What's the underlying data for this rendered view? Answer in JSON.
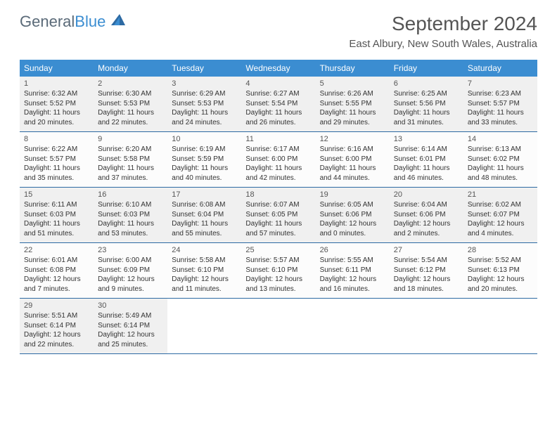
{
  "logo": {
    "text1": "General",
    "text2": "Blue"
  },
  "title": "September 2024",
  "location": "East Albury, New South Wales, Australia",
  "colors": {
    "header_bg": "#3b8dd1",
    "header_text": "#ffffff",
    "row_border": "#2d6aa3",
    "shaded_bg": "#f0f0f0",
    "cell_bg": "#fcfcfc",
    "text": "#333333",
    "logo_gray": "#5a6a78",
    "logo_blue": "#3b8dd1"
  },
  "day_names": [
    "Sunday",
    "Monday",
    "Tuesday",
    "Wednesday",
    "Thursday",
    "Friday",
    "Saturday"
  ],
  "weeks": [
    [
      {
        "n": "1",
        "sr": "Sunrise: 6:32 AM",
        "ss": "Sunset: 5:52 PM",
        "d1": "Daylight: 11 hours",
        "d2": "and 20 minutes.",
        "shaded": true
      },
      {
        "n": "2",
        "sr": "Sunrise: 6:30 AM",
        "ss": "Sunset: 5:53 PM",
        "d1": "Daylight: 11 hours",
        "d2": "and 22 minutes.",
        "shaded": true
      },
      {
        "n": "3",
        "sr": "Sunrise: 6:29 AM",
        "ss": "Sunset: 5:53 PM",
        "d1": "Daylight: 11 hours",
        "d2": "and 24 minutes.",
        "shaded": true
      },
      {
        "n": "4",
        "sr": "Sunrise: 6:27 AM",
        "ss": "Sunset: 5:54 PM",
        "d1": "Daylight: 11 hours",
        "d2": "and 26 minutes.",
        "shaded": true
      },
      {
        "n": "5",
        "sr": "Sunrise: 6:26 AM",
        "ss": "Sunset: 5:55 PM",
        "d1": "Daylight: 11 hours",
        "d2": "and 29 minutes.",
        "shaded": true
      },
      {
        "n": "6",
        "sr": "Sunrise: 6:25 AM",
        "ss": "Sunset: 5:56 PM",
        "d1": "Daylight: 11 hours",
        "d2": "and 31 minutes.",
        "shaded": true
      },
      {
        "n": "7",
        "sr": "Sunrise: 6:23 AM",
        "ss": "Sunset: 5:57 PM",
        "d1": "Daylight: 11 hours",
        "d2": "and 33 minutes.",
        "shaded": true
      }
    ],
    [
      {
        "n": "8",
        "sr": "Sunrise: 6:22 AM",
        "ss": "Sunset: 5:57 PM",
        "d1": "Daylight: 11 hours",
        "d2": "and 35 minutes."
      },
      {
        "n": "9",
        "sr": "Sunrise: 6:20 AM",
        "ss": "Sunset: 5:58 PM",
        "d1": "Daylight: 11 hours",
        "d2": "and 37 minutes."
      },
      {
        "n": "10",
        "sr": "Sunrise: 6:19 AM",
        "ss": "Sunset: 5:59 PM",
        "d1": "Daylight: 11 hours",
        "d2": "and 40 minutes."
      },
      {
        "n": "11",
        "sr": "Sunrise: 6:17 AM",
        "ss": "Sunset: 6:00 PM",
        "d1": "Daylight: 11 hours",
        "d2": "and 42 minutes."
      },
      {
        "n": "12",
        "sr": "Sunrise: 6:16 AM",
        "ss": "Sunset: 6:00 PM",
        "d1": "Daylight: 11 hours",
        "d2": "and 44 minutes."
      },
      {
        "n": "13",
        "sr": "Sunrise: 6:14 AM",
        "ss": "Sunset: 6:01 PM",
        "d1": "Daylight: 11 hours",
        "d2": "and 46 minutes."
      },
      {
        "n": "14",
        "sr": "Sunrise: 6:13 AM",
        "ss": "Sunset: 6:02 PM",
        "d1": "Daylight: 11 hours",
        "d2": "and 48 minutes."
      }
    ],
    [
      {
        "n": "15",
        "sr": "Sunrise: 6:11 AM",
        "ss": "Sunset: 6:03 PM",
        "d1": "Daylight: 11 hours",
        "d2": "and 51 minutes.",
        "shaded": true
      },
      {
        "n": "16",
        "sr": "Sunrise: 6:10 AM",
        "ss": "Sunset: 6:03 PM",
        "d1": "Daylight: 11 hours",
        "d2": "and 53 minutes.",
        "shaded": true
      },
      {
        "n": "17",
        "sr": "Sunrise: 6:08 AM",
        "ss": "Sunset: 6:04 PM",
        "d1": "Daylight: 11 hours",
        "d2": "and 55 minutes.",
        "shaded": true
      },
      {
        "n": "18",
        "sr": "Sunrise: 6:07 AM",
        "ss": "Sunset: 6:05 PM",
        "d1": "Daylight: 11 hours",
        "d2": "and 57 minutes.",
        "shaded": true
      },
      {
        "n": "19",
        "sr": "Sunrise: 6:05 AM",
        "ss": "Sunset: 6:06 PM",
        "d1": "Daylight: 12 hours",
        "d2": "and 0 minutes.",
        "shaded": true
      },
      {
        "n": "20",
        "sr": "Sunrise: 6:04 AM",
        "ss": "Sunset: 6:06 PM",
        "d1": "Daylight: 12 hours",
        "d2": "and 2 minutes.",
        "shaded": true
      },
      {
        "n": "21",
        "sr": "Sunrise: 6:02 AM",
        "ss": "Sunset: 6:07 PM",
        "d1": "Daylight: 12 hours",
        "d2": "and 4 minutes.",
        "shaded": true
      }
    ],
    [
      {
        "n": "22",
        "sr": "Sunrise: 6:01 AM",
        "ss": "Sunset: 6:08 PM",
        "d1": "Daylight: 12 hours",
        "d2": "and 7 minutes."
      },
      {
        "n": "23",
        "sr": "Sunrise: 6:00 AM",
        "ss": "Sunset: 6:09 PM",
        "d1": "Daylight: 12 hours",
        "d2": "and 9 minutes."
      },
      {
        "n": "24",
        "sr": "Sunrise: 5:58 AM",
        "ss": "Sunset: 6:10 PM",
        "d1": "Daylight: 12 hours",
        "d2": "and 11 minutes."
      },
      {
        "n": "25",
        "sr": "Sunrise: 5:57 AM",
        "ss": "Sunset: 6:10 PM",
        "d1": "Daylight: 12 hours",
        "d2": "and 13 minutes."
      },
      {
        "n": "26",
        "sr": "Sunrise: 5:55 AM",
        "ss": "Sunset: 6:11 PM",
        "d1": "Daylight: 12 hours",
        "d2": "and 16 minutes."
      },
      {
        "n": "27",
        "sr": "Sunrise: 5:54 AM",
        "ss": "Sunset: 6:12 PM",
        "d1": "Daylight: 12 hours",
        "d2": "and 18 minutes."
      },
      {
        "n": "28",
        "sr": "Sunrise: 5:52 AM",
        "ss": "Sunset: 6:13 PM",
        "d1": "Daylight: 12 hours",
        "d2": "and 20 minutes."
      }
    ],
    [
      {
        "n": "29",
        "sr": "Sunrise: 5:51 AM",
        "ss": "Sunset: 6:14 PM",
        "d1": "Daylight: 12 hours",
        "d2": "and 22 minutes.",
        "shaded": true
      },
      {
        "n": "30",
        "sr": "Sunrise: 5:49 AM",
        "ss": "Sunset: 6:14 PM",
        "d1": "Daylight: 12 hours",
        "d2": "and 25 minutes.",
        "shaded": true
      },
      {
        "empty": true
      },
      {
        "empty": true
      },
      {
        "empty": true
      },
      {
        "empty": true
      },
      {
        "empty": true
      }
    ]
  ]
}
